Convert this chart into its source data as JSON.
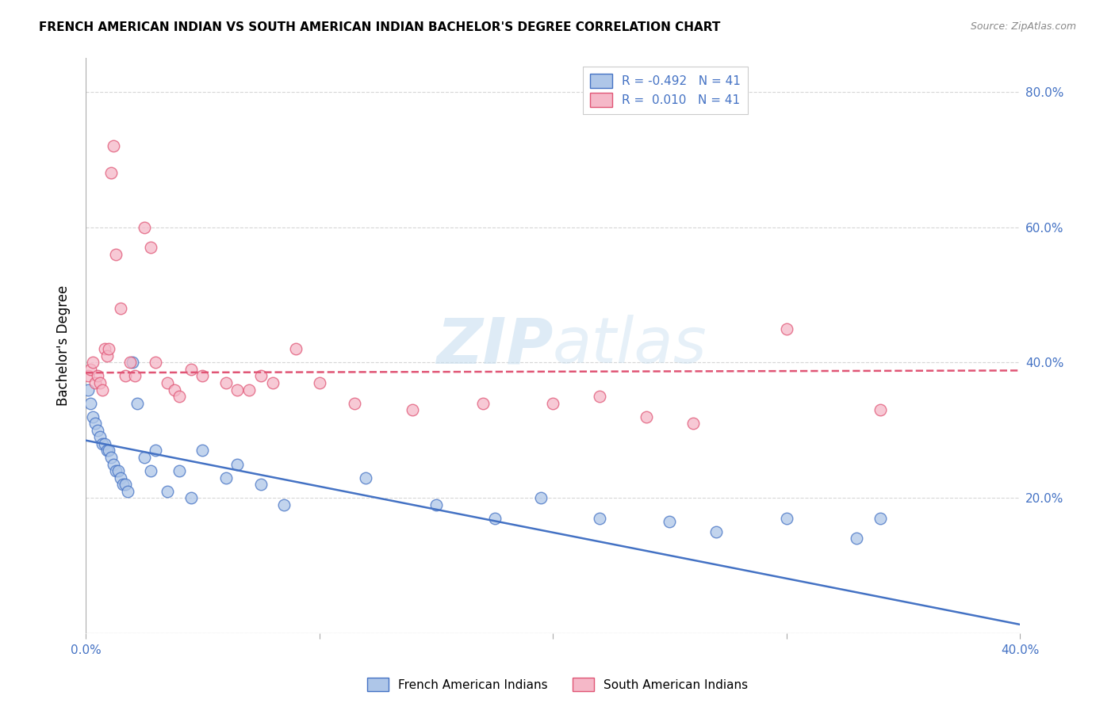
{
  "title": "FRENCH AMERICAN INDIAN VS SOUTH AMERICAN INDIAN BACHELOR'S DEGREE CORRELATION CHART",
  "source": "Source: ZipAtlas.com",
  "ylabel": "Bachelor's Degree",
  "xlim": [
    0.0,
    0.4
  ],
  "ylim": [
    0.0,
    0.85
  ],
  "blue_color": "#aec6e8",
  "pink_color": "#f5b8c8",
  "blue_line_color": "#4472c4",
  "pink_line_color": "#e05575",
  "legend_R_blue": "-0.492",
  "legend_R_pink": "0.010",
  "legend_N": "41",
  "legend_label_blue": "French American Indians",
  "legend_label_pink": "South American Indians",
  "watermark_zip": "ZIP",
  "watermark_atlas": "atlas",
  "blue_x": [
    0.001,
    0.002,
    0.003,
    0.004,
    0.005,
    0.006,
    0.007,
    0.008,
    0.009,
    0.01,
    0.011,
    0.012,
    0.013,
    0.014,
    0.015,
    0.016,
    0.017,
    0.018,
    0.02,
    0.022,
    0.025,
    0.028,
    0.03,
    0.035,
    0.04,
    0.045,
    0.05,
    0.06,
    0.065,
    0.075,
    0.085,
    0.12,
    0.15,
    0.175,
    0.195,
    0.22,
    0.25,
    0.27,
    0.3,
    0.33,
    0.34
  ],
  "blue_y": [
    0.36,
    0.34,
    0.32,
    0.31,
    0.3,
    0.29,
    0.28,
    0.28,
    0.27,
    0.27,
    0.26,
    0.25,
    0.24,
    0.24,
    0.23,
    0.22,
    0.22,
    0.21,
    0.4,
    0.34,
    0.26,
    0.24,
    0.27,
    0.21,
    0.24,
    0.2,
    0.27,
    0.23,
    0.25,
    0.22,
    0.19,
    0.23,
    0.19,
    0.17,
    0.2,
    0.17,
    0.165,
    0.15,
    0.17,
    0.14,
    0.17
  ],
  "pink_x": [
    0.001,
    0.002,
    0.003,
    0.004,
    0.005,
    0.006,
    0.007,
    0.008,
    0.009,
    0.01,
    0.011,
    0.012,
    0.013,
    0.015,
    0.017,
    0.019,
    0.021,
    0.025,
    0.028,
    0.03,
    0.035,
    0.038,
    0.04,
    0.045,
    0.05,
    0.06,
    0.065,
    0.07,
    0.075,
    0.08,
    0.09,
    0.1,
    0.115,
    0.14,
    0.17,
    0.2,
    0.22,
    0.24,
    0.26,
    0.3,
    0.34
  ],
  "pink_y": [
    0.38,
    0.39,
    0.4,
    0.37,
    0.38,
    0.37,
    0.36,
    0.42,
    0.41,
    0.42,
    0.68,
    0.72,
    0.56,
    0.48,
    0.38,
    0.4,
    0.38,
    0.6,
    0.57,
    0.4,
    0.37,
    0.36,
    0.35,
    0.39,
    0.38,
    0.37,
    0.36,
    0.36,
    0.38,
    0.37,
    0.42,
    0.37,
    0.34,
    0.33,
    0.34,
    0.34,
    0.35,
    0.32,
    0.31,
    0.45,
    0.33
  ]
}
